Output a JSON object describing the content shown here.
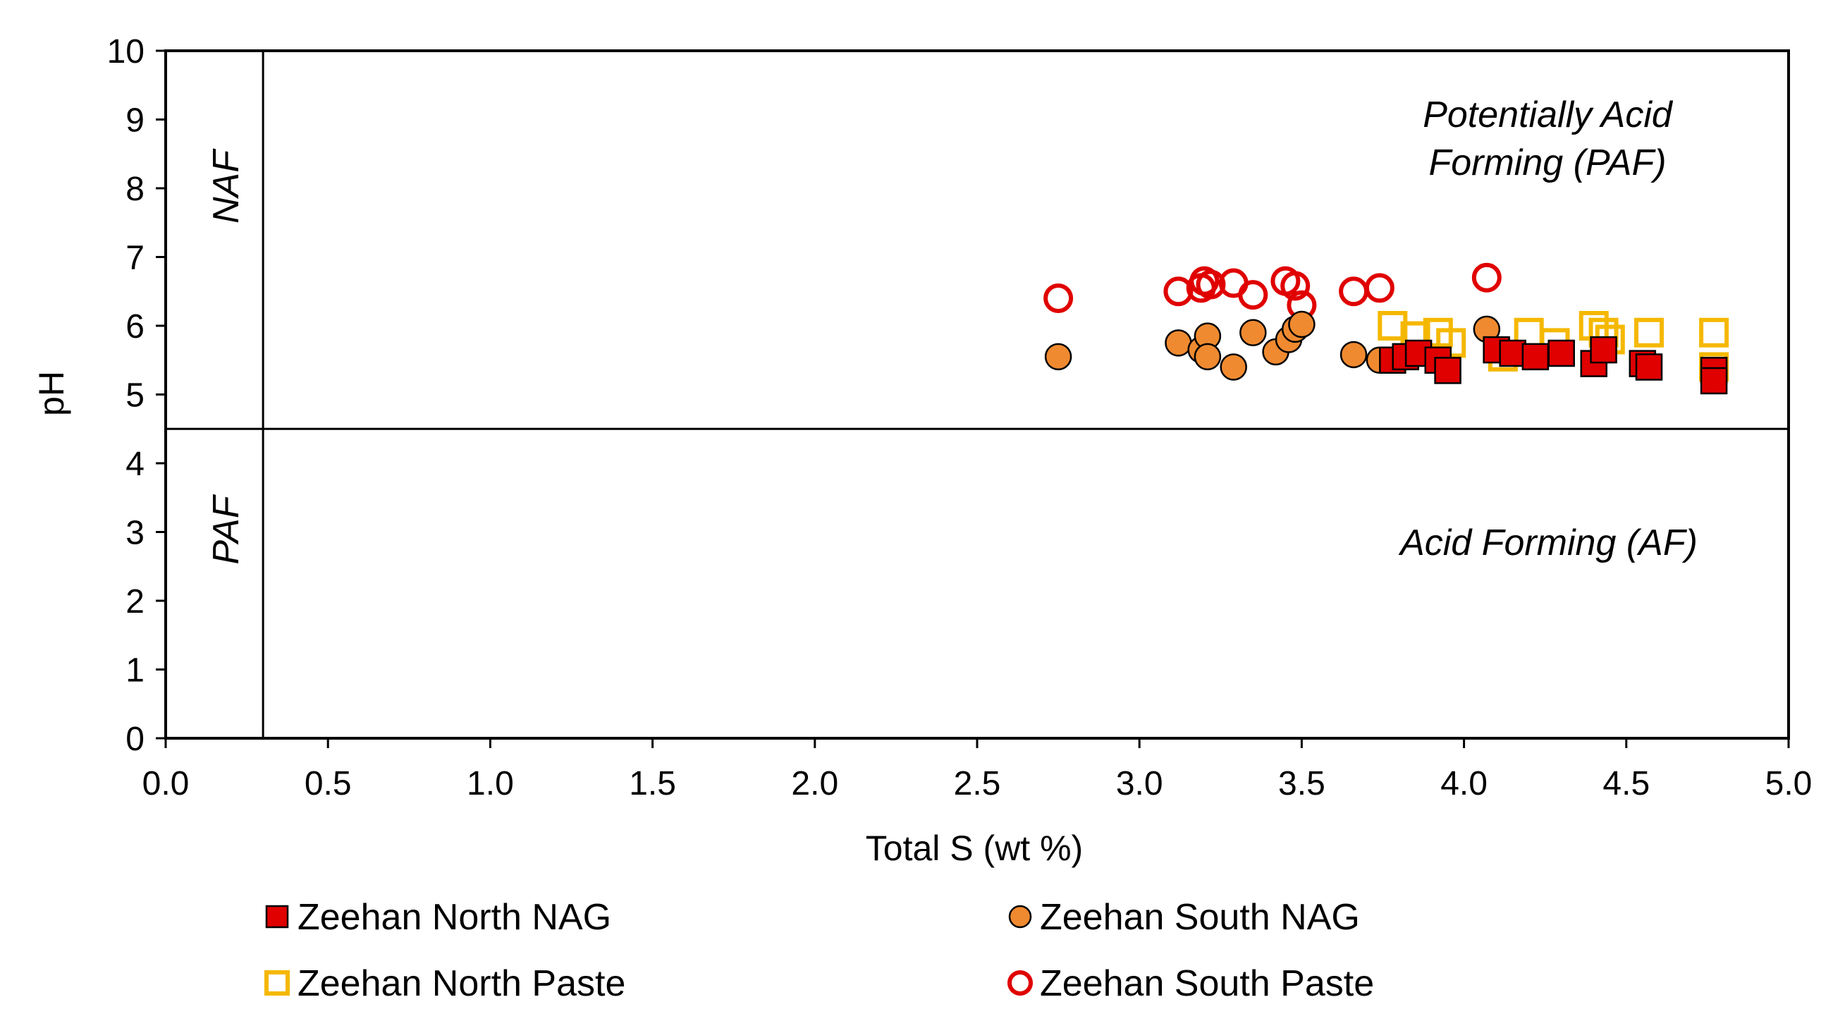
{
  "chart_data": {
    "type": "scatter",
    "title": "",
    "xlabel": "Total S (wt %)",
    "ylabel": "pH",
    "xlim": [
      0,
      5
    ],
    "ylim": [
      0,
      10
    ],
    "x_ticks": [
      "0.0",
      "0.5",
      "1.0",
      "1.5",
      "2.0",
      "2.5",
      "3.0",
      "3.5",
      "4.0",
      "4.5",
      "5.0"
    ],
    "y_ticks": [
      "0",
      "1",
      "2",
      "3",
      "4",
      "5",
      "6",
      "7",
      "8",
      "9",
      "10"
    ],
    "grid": false,
    "legend_position": "bottom",
    "threshold_lines": {
      "vertical_total_s": 0.3,
      "horizontal_ph": 4.5
    },
    "region_labels": {
      "top_right_line1": "Potentially Acid",
      "top_right_line2": "Forming (PAF)",
      "bottom_right": "Acid Forming (AF)",
      "top_left": "NAF",
      "bottom_left": "PAF"
    },
    "series": [
      {
        "name": "Zeehan North NAG",
        "marker": "square-filled",
        "fill": "#e00000",
        "stroke": "#000000",
        "points": [
          {
            "x": 3.78,
            "y": 5.5
          },
          {
            "x": 3.82,
            "y": 5.55
          },
          {
            "x": 3.86,
            "y": 5.6
          },
          {
            "x": 3.92,
            "y": 5.5
          },
          {
            "x": 3.95,
            "y": 5.35
          },
          {
            "x": 4.1,
            "y": 5.65
          },
          {
            "x": 4.15,
            "y": 5.6
          },
          {
            "x": 4.22,
            "y": 5.55
          },
          {
            "x": 4.3,
            "y": 5.6
          },
          {
            "x": 4.4,
            "y": 5.45
          },
          {
            "x": 4.43,
            "y": 5.65
          },
          {
            "x": 4.55,
            "y": 5.45
          },
          {
            "x": 4.57,
            "y": 5.4
          },
          {
            "x": 4.77,
            "y": 5.35
          },
          {
            "x": 4.77,
            "y": 5.2
          }
        ]
      },
      {
        "name": "Zeehan South NAG",
        "marker": "circle-filled",
        "fill": "#f08a30",
        "stroke": "#000000",
        "points": [
          {
            "x": 2.75,
            "y": 5.55
          },
          {
            "x": 3.12,
            "y": 5.75
          },
          {
            "x": 3.19,
            "y": 5.65
          },
          {
            "x": 3.21,
            "y": 5.85
          },
          {
            "x": 3.21,
            "y": 5.55
          },
          {
            "x": 3.29,
            "y": 5.4
          },
          {
            "x": 3.35,
            "y": 5.9
          },
          {
            "x": 3.42,
            "y": 5.62
          },
          {
            "x": 3.46,
            "y": 5.8
          },
          {
            "x": 3.48,
            "y": 5.95
          },
          {
            "x": 3.5,
            "y": 6.02
          },
          {
            "x": 3.66,
            "y": 5.58
          },
          {
            "x": 3.74,
            "y": 5.5
          },
          {
            "x": 4.07,
            "y": 5.95
          }
        ]
      },
      {
        "name": "Zeehan North Paste",
        "marker": "square-open",
        "fill": "none",
        "stroke": "#f5b800",
        "points": [
          {
            "x": 3.78,
            "y": 6.0
          },
          {
            "x": 3.85,
            "y": 5.85
          },
          {
            "x": 3.92,
            "y": 5.9
          },
          {
            "x": 3.96,
            "y": 5.75
          },
          {
            "x": 4.12,
            "y": 5.55
          },
          {
            "x": 4.2,
            "y": 5.9
          },
          {
            "x": 4.28,
            "y": 5.75
          },
          {
            "x": 4.4,
            "y": 6.0
          },
          {
            "x": 4.43,
            "y": 5.9
          },
          {
            "x": 4.45,
            "y": 5.8
          },
          {
            "x": 4.57,
            "y": 5.9
          },
          {
            "x": 4.77,
            "y": 5.9
          },
          {
            "x": 4.77,
            "y": 5.4
          }
        ]
      },
      {
        "name": "Zeehan South Paste",
        "marker": "circle-open",
        "fill": "none",
        "stroke": "#e00000",
        "points": [
          {
            "x": 2.75,
            "y": 6.4
          },
          {
            "x": 3.12,
            "y": 6.5
          },
          {
            "x": 3.19,
            "y": 6.55
          },
          {
            "x": 3.2,
            "y": 6.65
          },
          {
            "x": 3.22,
            "y": 6.6
          },
          {
            "x": 3.29,
            "y": 6.62
          },
          {
            "x": 3.35,
            "y": 6.45
          },
          {
            "x": 3.45,
            "y": 6.65
          },
          {
            "x": 3.48,
            "y": 6.58
          },
          {
            "x": 3.5,
            "y": 6.3
          },
          {
            "x": 3.66,
            "y": 6.5
          },
          {
            "x": 3.74,
            "y": 6.55
          },
          {
            "x": 4.07,
            "y": 6.7
          }
        ]
      }
    ]
  }
}
